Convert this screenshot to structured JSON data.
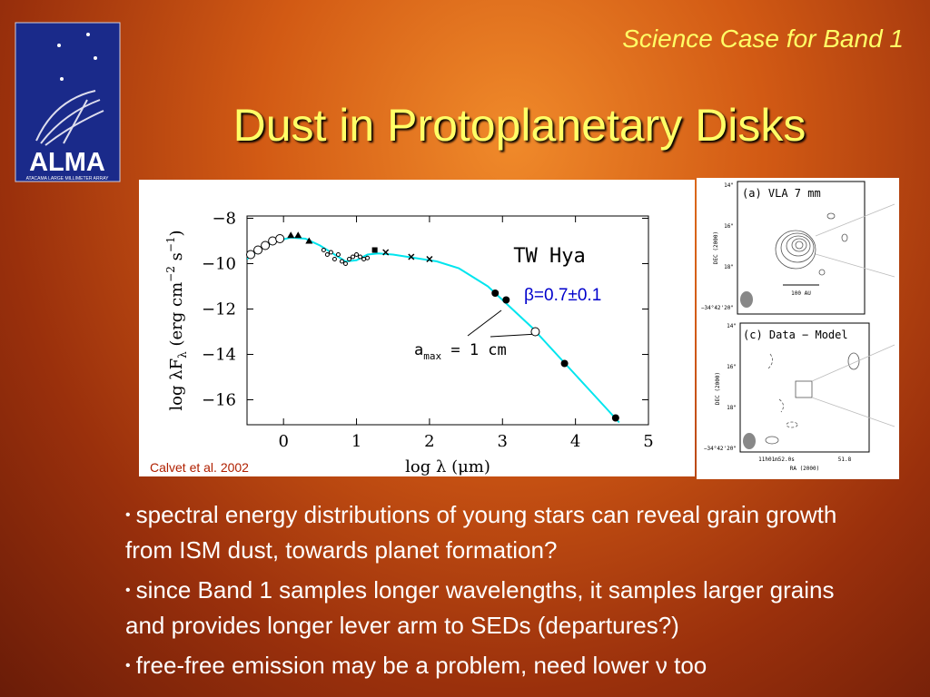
{
  "header": {
    "subtitle": "Science Case for Band 1",
    "title": "Dust in Protoplanetary Disks"
  },
  "logo": {
    "text": "ALMA",
    "subtext": "ATACAMA LARGE MILLIMETER ARRAY"
  },
  "chart_data": {
    "type": "scatter",
    "title": "TW Hya",
    "xlabel": "log λ (μm)",
    "ylabel_parts": [
      "log λF",
      "λ",
      " (erg cm",
      "−2",
      " s",
      "−1",
      ")"
    ],
    "annotations": {
      "beta": "β=0.7±0.1",
      "amax": {
        "symbol": "a",
        "subscript": "max",
        "rest": " = 1 cm"
      }
    },
    "xlim": [
      -0.5,
      5
    ],
    "ylim": [
      -17.1,
      -7.9
    ],
    "xticks": [
      0,
      1,
      2,
      3,
      4,
      5
    ],
    "yticks": [
      {
        "value": -8,
        "label": "−8"
      },
      {
        "value": -10,
        "label": "−10"
      },
      {
        "value": -12,
        "label": "−12"
      },
      {
        "value": -14,
        "label": "−14"
      },
      {
        "value": -16,
        "label": "−16"
      }
    ],
    "line": {
      "color": "#00e5ee",
      "x": [
        -0.5,
        -0.3,
        -0.1,
        0.1,
        0.3,
        0.5,
        0.7,
        0.85,
        1.0,
        1.15,
        1.3,
        1.5,
        1.8,
        2.1,
        2.4,
        2.6,
        2.8,
        3.0,
        3.2,
        3.4,
        3.6,
        3.8,
        4.0,
        4.2,
        4.4,
        4.6
      ],
      "y": [
        -9.8,
        -9.3,
        -9.0,
        -8.85,
        -8.9,
        -9.2,
        -9.6,
        -9.9,
        -9.85,
        -9.6,
        -9.55,
        -9.6,
        -9.75,
        -9.9,
        -10.2,
        -10.6,
        -11.0,
        -11.6,
        -12.2,
        -12.8,
        -13.5,
        -14.2,
        -14.9,
        -15.6,
        -16.3,
        -17.0
      ]
    },
    "series": [
      {
        "marker": "circle-open",
        "color": "#000000",
        "x": [
          -0.45,
          -0.35,
          -0.25,
          -0.15,
          -0.05,
          3.45
        ],
        "y": [
          -9.6,
          -9.4,
          -9.2,
          -9.0,
          -8.9,
          -13.0
        ]
      },
      {
        "marker": "triangle",
        "color": "#000000",
        "x": [
          0.1,
          0.2,
          0.35
        ],
        "y": [
          -8.75,
          -8.75,
          -9.0
        ]
      },
      {
        "marker": "dot",
        "color": "#000000",
        "x": [
          0.55,
          0.6,
          0.65,
          0.7,
          0.75,
          0.8,
          0.85,
          0.9,
          0.95,
          1.0,
          1.05,
          1.1,
          1.15
        ],
        "y": [
          -9.4,
          -9.6,
          -9.5,
          -9.8,
          -9.6,
          -9.9,
          -10.0,
          -9.8,
          -9.7,
          -9.6,
          -9.7,
          -9.8,
          -9.75
        ]
      },
      {
        "marker": "square",
        "color": "#000000",
        "x": [
          1.25
        ],
        "y": [
          -9.4
        ]
      },
      {
        "marker": "cross",
        "color": "#000000",
        "x": [
          1.4,
          1.75,
          2.0
        ],
        "y": [
          -9.5,
          -9.7,
          -9.8
        ]
      },
      {
        "marker": "circle",
        "color": "#000000",
        "x": [
          2.9,
          3.05,
          3.85,
          4.55
        ],
        "y": [
          -11.3,
          -11.6,
          -14.4,
          -16.8
        ]
      }
    ]
  },
  "credit": "Calvet et al. 2002",
  "side_figure": {
    "panels": [
      {
        "label": "(a) VLA 7 mm",
        "yticks": [
          "14\"",
          "16\"",
          "18\"",
          "−34°42'20\""
        ],
        "ylabel": "DEC (2000)",
        "scale": "100 AU"
      },
      {
        "label": "(c) Data − Model",
        "yticks": [
          "14\"",
          "16\"",
          "18\"",
          "−34°42'20\""
        ],
        "ylabel": "DEC (2000)",
        "xticks": [
          "11h01m52.0s",
          "51.8"
        ],
        "xlabel": "RA (2000)"
      }
    ]
  },
  "bullets": [
    "spectral energy distributions of young stars can reveal grain growth from ISM dust, towards planet formation?",
    "since Band 1 samples longer wavelengths, it samples larger grains and provides longer lever arm to SEDs (departures?)",
    "free-free emission may be a problem, need lower ν too"
  ]
}
